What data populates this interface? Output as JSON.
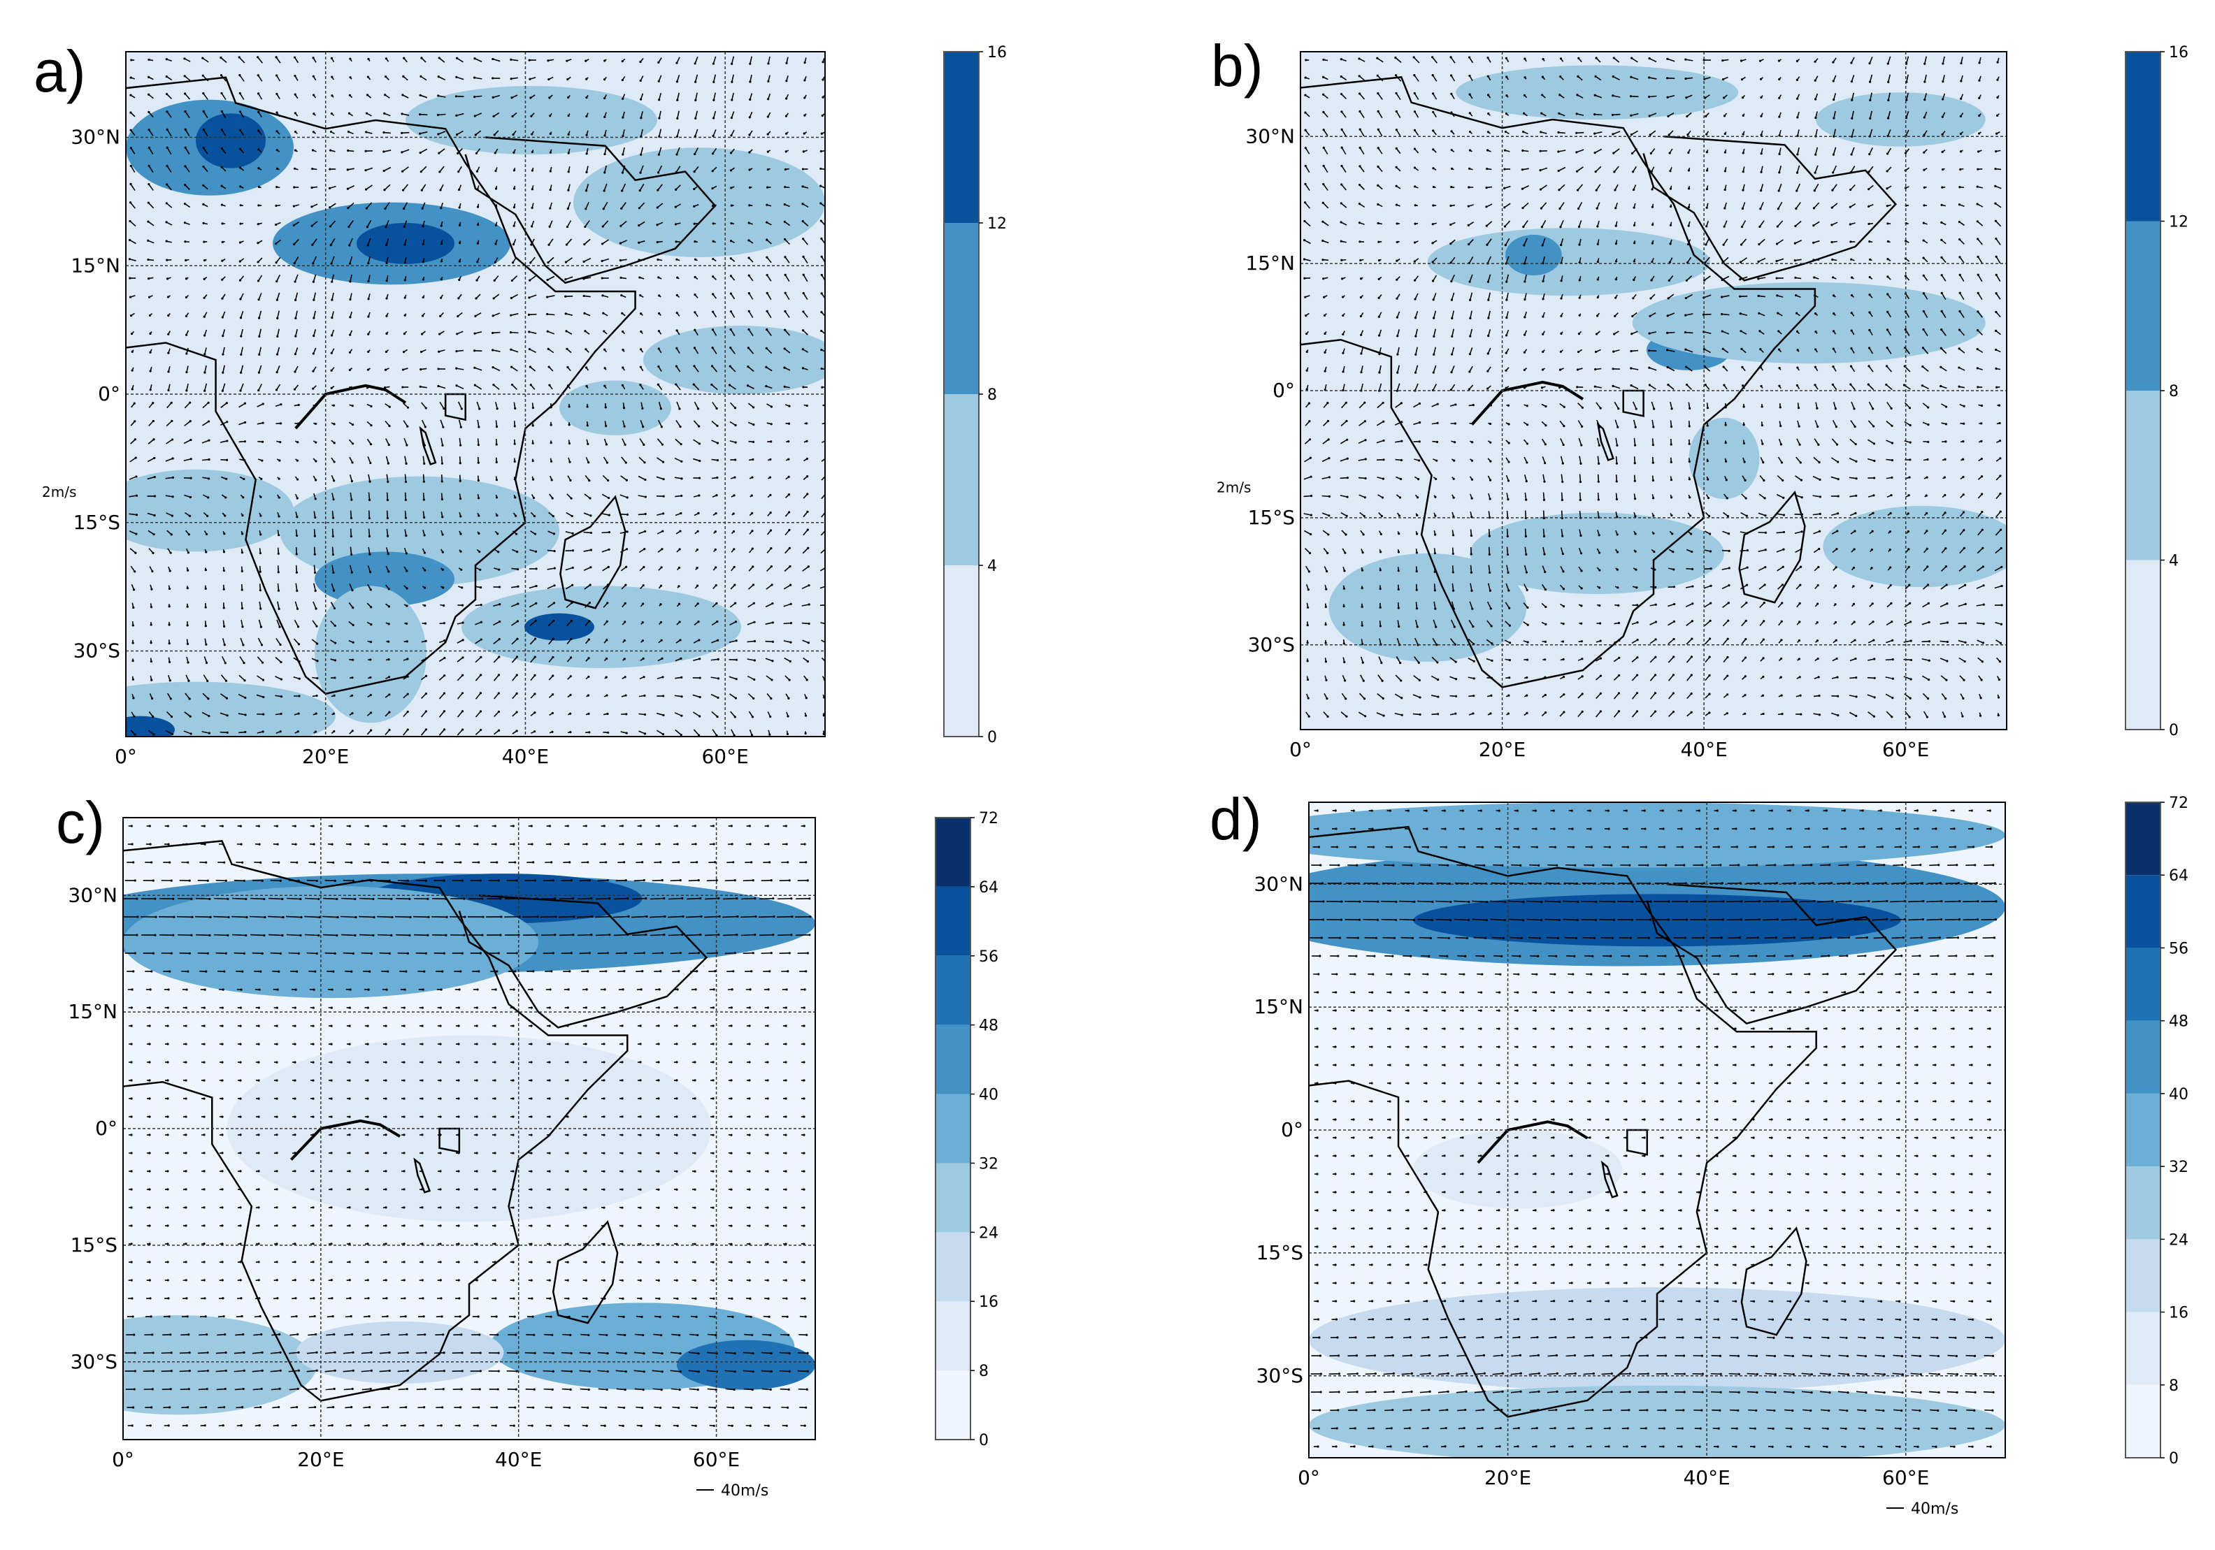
{
  "panels": [
    {
      "letter": "a)",
      "lat_labels": [
        "30°N",
        "15°N",
        "0°",
        "15°S",
        "30°S"
      ],
      "lon_labels": [
        "0°",
        "20°E",
        "40°E",
        "60°E"
      ],
      "side_label": "2m/s",
      "colorbar_ticks": [
        "0",
        "4",
        "8",
        "12",
        "16"
      ],
      "colorbar_colors": [
        "#deebf7",
        "#9ecae1",
        "#4292c6",
        "#08519c"
      ],
      "scale_label": ""
    },
    {
      "letter": "b)",
      "lat_labels": [
        "30°N",
        "15°N",
        "0°",
        "15°S",
        "30°S"
      ],
      "lon_labels": [
        "0°",
        "20°E",
        "40°E",
        "60°E"
      ],
      "side_label": "2m/s",
      "colorbar_ticks": [
        "0",
        "4",
        "8",
        "12",
        "16"
      ],
      "colorbar_colors": [
        "#deebf7",
        "#9ecae1",
        "#4292c6",
        "#08519c"
      ],
      "scale_label": ""
    },
    {
      "letter": "c)",
      "lat_labels": [
        "30°N",
        "15°N",
        "0°",
        "15°S",
        "30°S"
      ],
      "lon_labels": [
        "0°",
        "20°E",
        "40°E",
        "60°E"
      ],
      "side_label": "",
      "colorbar_ticks": [
        "0",
        "8",
        "16",
        "24",
        "32",
        "40",
        "48",
        "56",
        "64",
        "72"
      ],
      "colorbar_colors": [
        "#eff5fc",
        "#deebf7",
        "#c6dbef",
        "#9ecae1",
        "#6baed6",
        "#4292c6",
        "#2171b5",
        "#08519c",
        "#08306b"
      ],
      "scale_label": "40m/s"
    },
    {
      "letter": "d)",
      "lat_labels": [
        "30°N",
        "15°N",
        "0°",
        "15°S",
        "30°S"
      ],
      "lon_labels": [
        "0°",
        "20°E",
        "40°E",
        "60°E"
      ],
      "side_label": "",
      "colorbar_ticks": [
        "0",
        "8",
        "16",
        "24",
        "32",
        "40",
        "48",
        "56",
        "64",
        "72"
      ],
      "colorbar_colors": [
        "#eff5fc",
        "#deebf7",
        "#c6dbef",
        "#9ecae1",
        "#6baed6",
        "#4292c6",
        "#2171b5",
        "#08519c",
        "#08306b"
      ],
      "scale_label": "40m/s"
    }
  ]
}
